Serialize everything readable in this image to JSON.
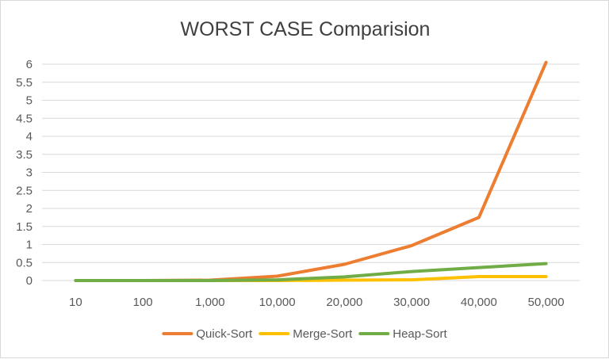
{
  "chart_data": {
    "type": "line",
    "title": "WORST CASE Comparision",
    "xlabel": "",
    "ylabel": "",
    "categories": [
      "10",
      "100",
      "1,000",
      "10,000",
      "20,000",
      "30,000",
      "40,000",
      "50,000"
    ],
    "ylim": [
      0,
      6
    ],
    "yticks": [
      "0",
      "0.5",
      "1",
      "1.5",
      "2",
      "2.5",
      "3",
      "3.5",
      "4",
      "4.5",
      "5",
      "5.5",
      "6"
    ],
    "grid": true,
    "legend_position": "bottom",
    "series": [
      {
        "name": "Quick-Sort",
        "color": "#ED7D31",
        "values": [
          0,
          0,
          0.01,
          0.12,
          0.45,
          0.97,
          1.75,
          6.05
        ]
      },
      {
        "name": "Merge-Sort",
        "color": "#FFC000",
        "values": [
          0,
          0,
          0,
          0,
          0.01,
          0.02,
          0.11,
          0.11
        ]
      },
      {
        "name": "Heap-Sort",
        "color": "#70AD47",
        "values": [
          0,
          0,
          0,
          0.02,
          0.1,
          0.25,
          0.36,
          0.47
        ]
      }
    ]
  }
}
